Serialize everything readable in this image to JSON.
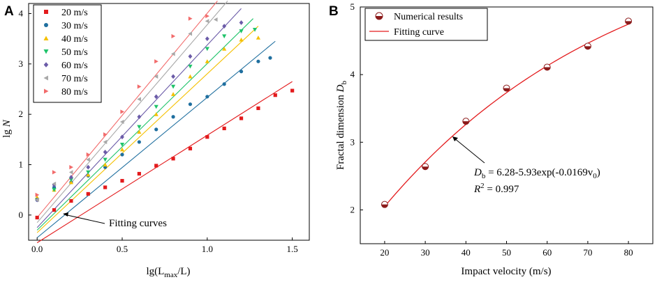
{
  "chart_data": [
    {
      "panel": "A",
      "type": "scatter",
      "xlabel_main": "lg(L",
      "xlabel_sub": "max",
      "xlabel_tail": "/L)",
      "ylabel_main": "lg ",
      "ylabel_italic": "N",
      "xlim": [
        -0.05,
        1.6
      ],
      "ylim": [
        -0.5,
        4.2
      ],
      "xticks": [
        "0.0",
        "0.5",
        "1.0",
        "1.5"
      ],
      "yticks": [
        "0",
        "1",
        "2",
        "3",
        "4"
      ],
      "legend": "top-left",
      "annotation": "Fitting curves",
      "series": [
        {
          "name": "20 m/s",
          "marker": "square",
          "color": "#e31a1c",
          "x": [
            0.0,
            0.1,
            0.2,
            0.3,
            0.4,
            0.5,
            0.6,
            0.7,
            0.8,
            0.9,
            1.0,
            1.1,
            1.2,
            1.3,
            1.4,
            1.5
          ],
          "y": [
            -0.05,
            0.1,
            0.28,
            0.42,
            0.55,
            0.68,
            0.82,
            0.98,
            1.12,
            1.32,
            1.55,
            1.72,
            1.92,
            2.12,
            2.38,
            2.47
          ],
          "fit": {
            "x": [
              0.0,
              1.5
            ],
            "y": [
              -0.55,
              2.65
            ],
            "color": "#e31a1c"
          }
        },
        {
          "name": "30 m/s",
          "marker": "circle",
          "color": "#1f6f9f",
          "x": [
            0.0,
            0.1,
            0.2,
            0.3,
            0.4,
            0.5,
            0.6,
            0.7,
            0.8,
            0.9,
            1.0,
            1.1,
            1.2,
            1.3,
            1.37
          ],
          "y": [
            0.3,
            0.55,
            0.65,
            0.78,
            0.95,
            1.2,
            1.45,
            1.7,
            1.95,
            2.2,
            2.35,
            2.6,
            2.85,
            3.05,
            3.12
          ],
          "fit": {
            "x": [
              0.0,
              1.4
            ],
            "y": [
              -0.45,
              3.45
            ],
            "color": "#1f6f9f"
          }
        },
        {
          "name": "40 m/s",
          "marker": "triangle-up",
          "color": "#f5c000",
          "x": [
            0.0,
            0.1,
            0.2,
            0.3,
            0.4,
            0.5,
            0.6,
            0.7,
            0.8,
            0.9,
            1.0,
            1.1,
            1.2,
            1.3
          ],
          "y": [
            0.35,
            0.5,
            0.65,
            0.8,
            1.0,
            1.3,
            1.65,
            2.0,
            2.4,
            2.75,
            3.05,
            3.3,
            3.48,
            3.52
          ],
          "fit": {
            "x": [
              0.0,
              1.3
            ],
            "y": [
              -0.35,
              3.75
            ],
            "color": "#f5c000"
          }
        },
        {
          "name": "50 m/s",
          "marker": "triangle-down",
          "color": "#1fc36a",
          "x": [
            0.0,
            0.1,
            0.2,
            0.3,
            0.4,
            0.5,
            0.6,
            0.7,
            0.8,
            0.9,
            1.0,
            1.1,
            1.2,
            1.28
          ],
          "y": [
            0.3,
            0.5,
            0.7,
            0.85,
            1.1,
            1.4,
            1.75,
            2.15,
            2.55,
            2.95,
            3.3,
            3.55,
            3.65,
            3.68
          ],
          "fit": {
            "x": [
              0.0,
              1.27
            ],
            "y": [
              -0.3,
              3.9
            ],
            "color": "#1fc36a"
          }
        },
        {
          "name": "60 m/s",
          "marker": "diamond",
          "color": "#6b5ba8",
          "x": [
            0.0,
            0.1,
            0.2,
            0.3,
            0.4,
            0.5,
            0.6,
            0.7,
            0.8,
            0.9,
            1.0,
            1.1,
            1.2
          ],
          "y": [
            0.3,
            0.6,
            0.75,
            0.95,
            1.25,
            1.55,
            1.95,
            2.35,
            2.75,
            3.15,
            3.5,
            3.75,
            3.82
          ],
          "fit": {
            "x": [
              0.0,
              1.2
            ],
            "y": [
              -0.25,
              4.1
            ],
            "color": "#6b5ba8"
          }
        },
        {
          "name": "70 m/s",
          "marker": "triangle-left",
          "color": "#a8a8a8",
          "x": [
            0.0,
            0.1,
            0.2,
            0.3,
            0.4,
            0.5,
            0.6,
            0.7,
            0.8,
            0.9,
            1.0,
            1.05
          ],
          "y": [
            0.3,
            0.62,
            0.85,
            1.1,
            1.45,
            1.85,
            2.3,
            2.75,
            3.2,
            3.6,
            3.85,
            3.88
          ],
          "fit": {
            "x": [
              0.0,
              1.12
            ],
            "y": [
              -0.15,
              4.25
            ],
            "color": "#a8a8a8"
          }
        },
        {
          "name": "80 m/s",
          "marker": "triangle-right",
          "color": "#f26b6b",
          "x": [
            0.0,
            0.1,
            0.2,
            0.3,
            0.4,
            0.5,
            0.6,
            0.7,
            0.8,
            0.9,
            1.0
          ],
          "y": [
            0.4,
            0.85,
            0.95,
            1.2,
            1.6,
            2.05,
            2.55,
            3.05,
            3.55,
            3.9,
            3.95
          ],
          "fit": {
            "x": [
              0.0,
              1.06
            ],
            "y": [
              -0.05,
              4.25
            ],
            "color": "#f26b6b"
          }
        }
      ]
    },
    {
      "panel": "B",
      "type": "scatter",
      "xlabel": "Impact velocity (m/s)",
      "ylabel_main": "Fractal dimension ",
      "ylabel_italic": "D",
      "ylabel_sub": "b",
      "xlim": [
        14,
        86
      ],
      "ylim": [
        1.5,
        5
      ],
      "xticks": [
        "20",
        "30",
        "40",
        "50",
        "60",
        "70",
        "80"
      ],
      "yticks": [
        "2",
        "3",
        "4",
        "5"
      ],
      "legend": "top-left",
      "legend_points": "Numerical results",
      "legend_line": "Fitting curve",
      "x": [
        20,
        30,
        40,
        50,
        60,
        70,
        80
      ],
      "y": [
        2.08,
        2.64,
        3.31,
        3.8,
        4.11,
        4.42,
        4.79
      ],
      "fit": {
        "a": 6.28,
        "b": 5.93,
        "c": 0.0169
      },
      "equation": {
        "lhs": "D",
        "lhs_sub": "b",
        "rhs_pre": " = 6.28-5.93exp(-0.0169v",
        "rhs_sub": "0",
        "rhs_post": ")"
      },
      "r2": {
        "label": "R",
        "sup": "2",
        "value": " = 0.997"
      }
    }
  ]
}
